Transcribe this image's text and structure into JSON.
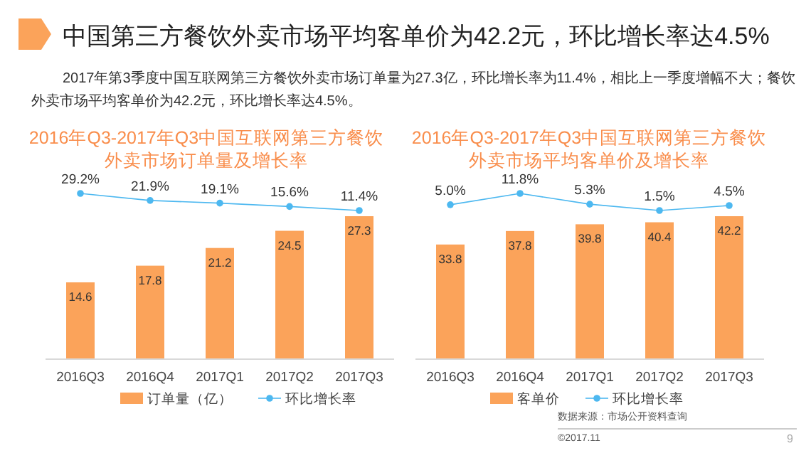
{
  "chart_data": [
    {
      "type": "other",
      "title": "中国第三方餐饮外卖市场平均客单价为42.2元，环比增长率达4.5%",
      "subtitle": "2017年第3季度中国互联网第三方餐饮外卖市场订单量为27.3亿，环比增长率为11.4%，相比上一季度增幅不大；餐饮外卖市场平均客单价为42.2元，环比增长率达4.5%。",
      "annotations": [
        "2016年Q3-2017年Q3中国互联网第三方餐饮外卖市场订单量及增长率",
        "2016年Q3-2017年Q3中国互联网第三方餐饮外卖市场平均客单价及增长率",
        "数据来源：市场公开资料查询",
        "©2017.11",
        "9"
      ]
    },
    {
      "type": "bar",
      "categories": [
        "2016Q3",
        "2016Q4",
        "2017Q1",
        "2017Q2",
        "2017Q3"
      ],
      "series": [
        {
          "name": "订单量（亿）",
          "color": "#fba35a",
          "values": [
            14.6,
            17.8,
            21.2,
            24.5,
            27.3
          ],
          "value_labels": [
            "14.6",
            "17.8",
            "21.2",
            "24.5",
            "27.3"
          ]
        }
      ],
      "tick_labels": "x",
      "legend": "bottom"
    },
    {
      "type": "line",
      "categories": [
        null,
        null,
        null,
        null,
        null
      ],
      "series": [
        {
          "name": "环比增长率",
          "color": "#4db8f0",
          "values": [
            29.2,
            21.9,
            19.1,
            15.6,
            11.4
          ],
          "value_labels": [
            "29.2%",
            "21.9%",
            "19.1%",
            "15.6%",
            "11.4%"
          ]
        }
      ],
      "legend": "bottom",
      "marker": "circle"
    },
    {
      "type": "bar",
      "categories": [
        "2016Q3",
        "2016Q4",
        "2017Q1",
        "2017Q2",
        "2017Q3"
      ],
      "series": [
        {
          "name": "客单价",
          "color": "#fba35a",
          "values": [
            33.8,
            37.8,
            39.8,
            40.4,
            42.2
          ],
          "value_labels": [
            "33.8",
            "37.8",
            "39.8",
            "40.4",
            "42.2"
          ]
        }
      ],
      "tick_labels": "x",
      "legend": "bottom"
    },
    {
      "type": "line",
      "categories": [
        null,
        null,
        null,
        null,
        null
      ],
      "series": [
        {
          "name": "环比增长率",
          "color": "#4db8f0",
          "values": [
            5.0,
            11.8,
            5.3,
            1.5,
            4.5
          ],
          "value_labels": [
            "5.0%",
            "11.8%",
            "5.3%",
            "1.5%",
            "4.5%"
          ]
        }
      ],
      "legend": "bottom",
      "marker": "circle"
    }
  ]
}
